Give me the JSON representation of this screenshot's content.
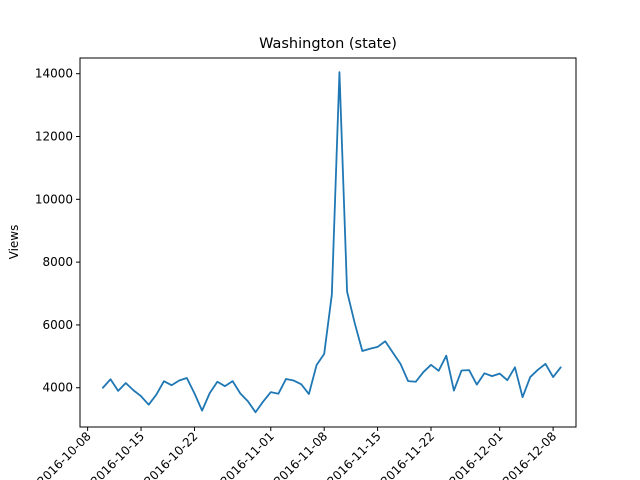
{
  "chart_data": {
    "type": "line",
    "title": "Washington (state)",
    "xlabel": "",
    "ylabel": "Views",
    "x_start": "2016-10-10",
    "x_step_days": 1,
    "xlim": [
      "2016-10-07",
      "2016-12-11"
    ],
    "ylim": [
      2750,
      14500
    ],
    "x_tick_labels": [
      {
        "label": "2016-10-08",
        "date": "2016-10-08"
      },
      {
        "label": "2016-10-15",
        "date": "2016-10-15"
      },
      {
        "label": "2016-10-22",
        "date": "2016-10-22"
      },
      {
        "label": "2016-11-01",
        "date": "2016-11-01"
      },
      {
        "label": "2016-11-08",
        "date": "2016-11-08"
      },
      {
        "label": "2016-11-15",
        "date": "2016-11-15"
      },
      {
        "label": "2016-11-22",
        "date": "2016-11-22"
      },
      {
        "label": "2016-12-01",
        "date": "2016-12-01"
      },
      {
        "label": "2016-12-08",
        "date": "2016-12-08"
      }
    ],
    "y_ticks": [
      4000,
      6000,
      8000,
      10000,
      12000,
      14000
    ],
    "grid": false,
    "series": [
      {
        "color": "#1f77b4",
        "values": [
          4000,
          4270,
          3900,
          4150,
          3920,
          3730,
          3460,
          3780,
          4210,
          4080,
          4230,
          4310,
          3820,
          3270,
          3830,
          4190,
          4050,
          4210,
          3820,
          3570,
          3220,
          3560,
          3860,
          3810,
          4280,
          4230,
          4110,
          3800,
          4720,
          5080,
          6960,
          14050,
          7060,
          6060,
          5170,
          5240,
          5300,
          5480,
          5120,
          4760,
          4210,
          4190,
          4500,
          4730,
          4540,
          5020,
          3910,
          4550,
          4560,
          4100,
          4460,
          4370,
          4450,
          4240,
          4650,
          3700,
          4340,
          4570,
          4760,
          4340,
          4650
        ]
      }
    ]
  }
}
